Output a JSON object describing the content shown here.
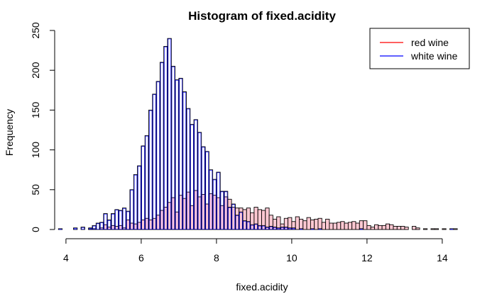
{
  "chart_data": {
    "type": "bar",
    "title": "Histogram of fixed.acidity",
    "xlabel": "fixed.acidity",
    "ylabel": "Frequency",
    "xlim": [
      3.7,
      14.7
    ],
    "ylim": [
      0,
      250
    ],
    "bin_width": 0.1,
    "x_ticks": [
      4,
      6,
      8,
      10,
      12,
      14
    ],
    "y_ticks": [
      0,
      50,
      100,
      150,
      200,
      250
    ],
    "grid": false,
    "legend_position": "top-right",
    "series": [
      {
        "name": "white wine",
        "color": "#0000ff",
        "fill": "#ffffff",
        "bins": [
          [
            3.8,
            1
          ],
          [
            4.2,
            2
          ],
          [
            4.4,
            3
          ],
          [
            4.6,
            2
          ],
          [
            4.7,
            5
          ],
          [
            4.8,
            8
          ],
          [
            4.9,
            9
          ],
          [
            5.0,
            20
          ],
          [
            5.1,
            12
          ],
          [
            5.2,
            20
          ],
          [
            5.3,
            25
          ],
          [
            5.4,
            24
          ],
          [
            5.5,
            27
          ],
          [
            5.6,
            23
          ],
          [
            5.7,
            50
          ],
          [
            5.8,
            69
          ],
          [
            5.9,
            80
          ],
          [
            6.0,
            105
          ],
          [
            6.1,
            118
          ],
          [
            6.2,
            150
          ],
          [
            6.3,
            170
          ],
          [
            6.4,
            186
          ],
          [
            6.5,
            210
          ],
          [
            6.6,
            230
          ],
          [
            6.7,
            240
          ],
          [
            6.8,
            205
          ],
          [
            6.9,
            188
          ],
          [
            7.0,
            190
          ],
          [
            7.1,
            173
          ],
          [
            7.2,
            152
          ],
          [
            7.3,
            132
          ],
          [
            7.4,
            138
          ],
          [
            7.5,
            122
          ],
          [
            7.6,
            104
          ],
          [
            7.7,
            98
          ],
          [
            7.8,
            75
          ],
          [
            7.9,
            63
          ],
          [
            8.0,
            72
          ],
          [
            8.1,
            48
          ],
          [
            8.2,
            48
          ],
          [
            8.3,
            28
          ],
          [
            8.4,
            32
          ],
          [
            8.5,
            18
          ],
          [
            8.6,
            22
          ],
          [
            8.7,
            11
          ],
          [
            8.8,
            10
          ],
          [
            8.9,
            6
          ],
          [
            9.0,
            7
          ],
          [
            9.1,
            5
          ],
          [
            9.2,
            5
          ],
          [
            9.3,
            3
          ],
          [
            9.4,
            4
          ],
          [
            9.5,
            3
          ],
          [
            9.6,
            2
          ],
          [
            9.7,
            3
          ],
          [
            9.8,
            3
          ],
          [
            9.9,
            2
          ],
          [
            10.0,
            2
          ],
          [
            10.2,
            1
          ],
          [
            10.5,
            1
          ],
          [
            10.7,
            1
          ],
          [
            11.8,
            1
          ],
          [
            14.2,
            1
          ]
        ]
      },
      {
        "name": "red wine",
        "color": "#ff0000",
        "fill": "#ffc0cb",
        "bins": [
          [
            4.6,
            1
          ],
          [
            4.7,
            1
          ],
          [
            4.9,
            2
          ],
          [
            5.0,
            6
          ],
          [
            5.1,
            3
          ],
          [
            5.2,
            5
          ],
          [
            5.3,
            4
          ],
          [
            5.4,
            5
          ],
          [
            5.5,
            2
          ],
          [
            5.6,
            12
          ],
          [
            5.7,
            8
          ],
          [
            5.8,
            7
          ],
          [
            5.9,
            9
          ],
          [
            6.0,
            12
          ],
          [
            6.1,
            14
          ],
          [
            6.2,
            12
          ],
          [
            6.3,
            14
          ],
          [
            6.4,
            18
          ],
          [
            6.5,
            24
          ],
          [
            6.6,
            28
          ],
          [
            6.7,
            34
          ],
          [
            6.8,
            40
          ],
          [
            6.9,
            22
          ],
          [
            7.0,
            43
          ],
          [
            7.1,
            39
          ],
          [
            7.2,
            47
          ],
          [
            7.3,
            30
          ],
          [
            7.4,
            49
          ],
          [
            7.5,
            41
          ],
          [
            7.6,
            44
          ],
          [
            7.7,
            32
          ],
          [
            7.8,
            45
          ],
          [
            7.9,
            43
          ],
          [
            8.0,
            40
          ],
          [
            8.1,
            30
          ],
          [
            8.2,
            41
          ],
          [
            8.3,
            38
          ],
          [
            8.4,
            28
          ],
          [
            8.5,
            27
          ],
          [
            8.6,
            27
          ],
          [
            8.7,
            25
          ],
          [
            8.8,
            27
          ],
          [
            8.9,
            21
          ],
          [
            9.0,
            28
          ],
          [
            9.1,
            25
          ],
          [
            9.2,
            24
          ],
          [
            9.3,
            27
          ],
          [
            9.4,
            18
          ],
          [
            9.5,
            13
          ],
          [
            9.6,
            16
          ],
          [
            9.7,
            7
          ],
          [
            9.8,
            14
          ],
          [
            9.9,
            15
          ],
          [
            10.0,
            10
          ],
          [
            10.1,
            16
          ],
          [
            10.2,
            13
          ],
          [
            10.3,
            11
          ],
          [
            10.4,
            15
          ],
          [
            10.5,
            12
          ],
          [
            10.6,
            13
          ],
          [
            10.7,
            14
          ],
          [
            10.8,
            9
          ],
          [
            10.9,
            13
          ],
          [
            11.0,
            8
          ],
          [
            11.1,
            8
          ],
          [
            11.2,
            9
          ],
          [
            11.3,
            10
          ],
          [
            11.4,
            8
          ],
          [
            11.5,
            9
          ],
          [
            11.6,
            10
          ],
          [
            11.7,
            8
          ],
          [
            11.8,
            11
          ],
          [
            11.9,
            11
          ],
          [
            12.0,
            5
          ],
          [
            12.1,
            3
          ],
          [
            12.2,
            6
          ],
          [
            12.3,
            5
          ],
          [
            12.4,
            5
          ],
          [
            12.5,
            7
          ],
          [
            12.6,
            6
          ],
          [
            12.7,
            4
          ],
          [
            12.8,
            4
          ],
          [
            12.9,
            4
          ],
          [
            13.0,
            3
          ],
          [
            13.2,
            4
          ],
          [
            13.3,
            2
          ],
          [
            13.5,
            1
          ],
          [
            13.7,
            1
          ],
          [
            13.8,
            1
          ],
          [
            14.0,
            1
          ],
          [
            14.3,
            1
          ]
        ]
      }
    ]
  }
}
